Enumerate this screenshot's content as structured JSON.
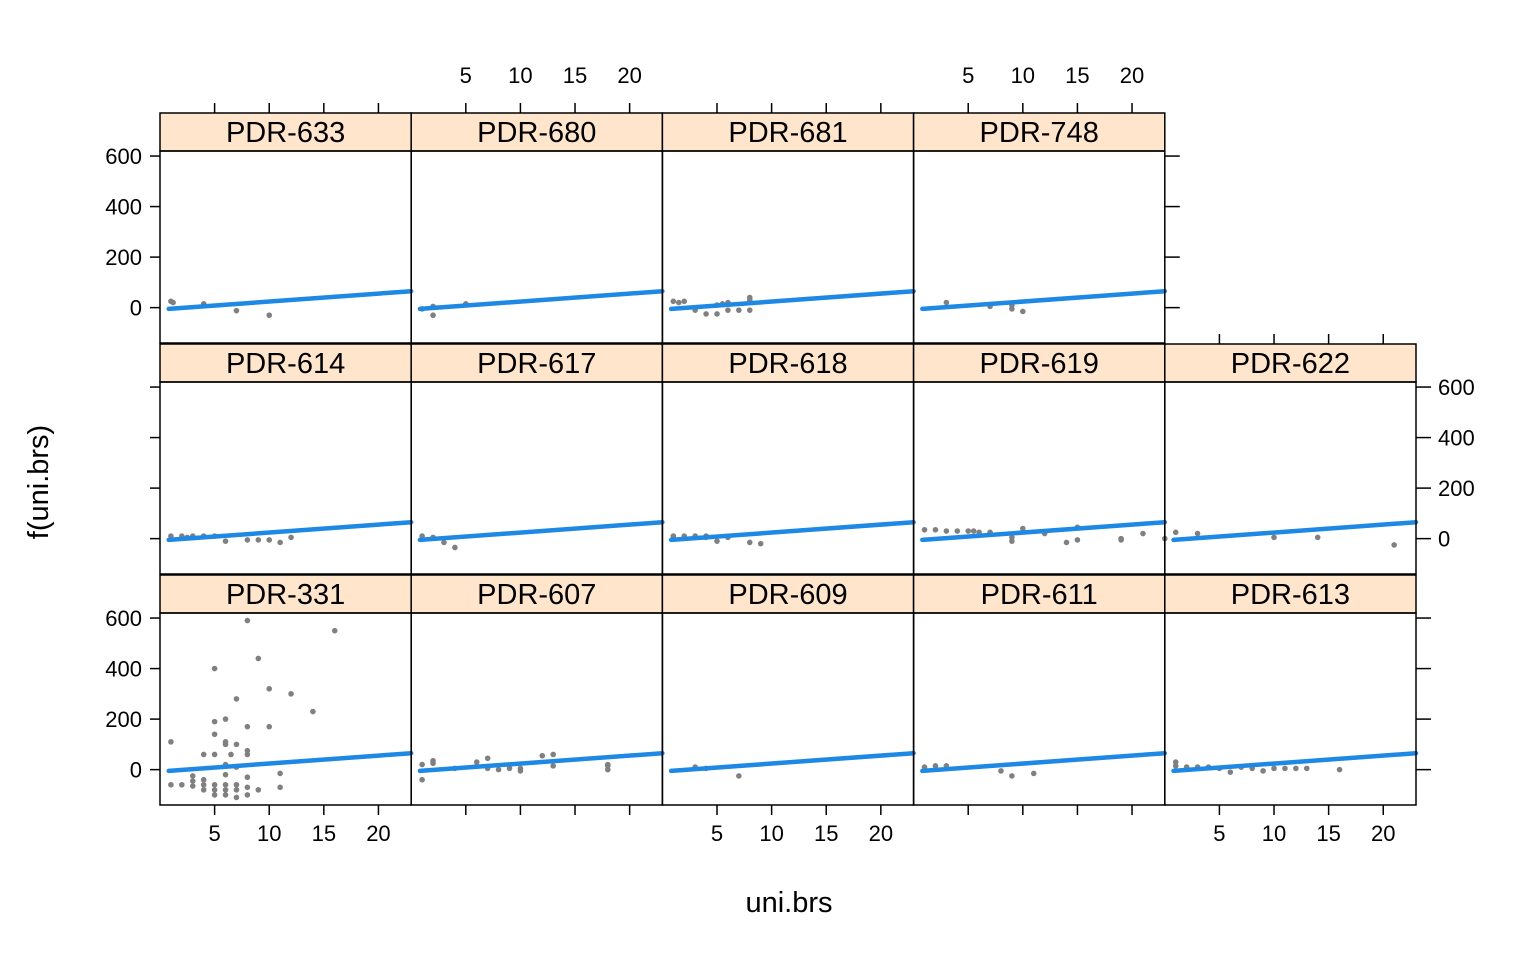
{
  "chart_data": {
    "type": "scatter",
    "xlabel": "uni.brs",
    "ylabel": "f(uni.brs)",
    "xlim": [
      0,
      23
    ],
    "ylim": [
      -140,
      620
    ],
    "x_ticks": [
      5,
      10,
      15,
      20
    ],
    "y_ticks": [
      0,
      200,
      400,
      600
    ],
    "layout": {
      "columns": 5,
      "rows": 3
    },
    "colors": {
      "points": "#808080",
      "fit_line": "#1E88E5",
      "strip_bg": "#FFE5CC",
      "frame": "#000000"
    },
    "fit_line": {
      "x": [
        0.8,
        23
      ],
      "y": [
        -5,
        65
      ]
    },
    "panels": [
      {
        "label": "PDR-633",
        "row": 0,
        "col": 0,
        "points": [
          [
            1,
            25
          ],
          [
            1.2,
            20
          ],
          [
            4,
            15
          ],
          [
            7,
            -12
          ],
          [
            10,
            -30
          ]
        ]
      },
      {
        "label": "PDR-680",
        "row": 0,
        "col": 1,
        "points": [
          [
            1,
            -5
          ],
          [
            2,
            -30
          ],
          [
            2,
            5
          ],
          [
            5,
            15
          ]
        ]
      },
      {
        "label": "PDR-681",
        "row": 0,
        "col": 2,
        "points": [
          [
            1,
            25
          ],
          [
            1.5,
            20
          ],
          [
            2,
            25
          ],
          [
            3,
            -10
          ],
          [
            4,
            -25
          ],
          [
            5,
            -25
          ],
          [
            5,
            10
          ],
          [
            5.5,
            15
          ],
          [
            6,
            -10
          ],
          [
            6,
            20
          ],
          [
            7,
            -10
          ],
          [
            8,
            -10
          ],
          [
            8,
            40
          ],
          [
            8,
            30
          ]
        ]
      },
      {
        "label": "PDR-748",
        "row": 0,
        "col": 3,
        "points": [
          [
            3,
            20
          ],
          [
            7,
            5
          ],
          [
            9,
            10
          ],
          [
            9,
            -5
          ],
          [
            10,
            -15
          ]
        ]
      },
      {
        "label": "PDR-614",
        "row": 1,
        "col": 0,
        "points": [
          [
            1,
            10
          ],
          [
            2,
            10
          ],
          [
            2.5,
            5
          ],
          [
            3,
            10
          ],
          [
            4,
            10
          ],
          [
            5,
            10
          ],
          [
            6,
            -10
          ],
          [
            8,
            -5
          ],
          [
            9,
            -5
          ],
          [
            10,
            -5
          ],
          [
            11,
            -15
          ],
          [
            12,
            5
          ]
        ]
      },
      {
        "label": "PDR-617",
        "row": 1,
        "col": 1,
        "points": [
          [
            1,
            10
          ],
          [
            2,
            5
          ],
          [
            3,
            -15
          ],
          [
            4,
            -35
          ]
        ]
      },
      {
        "label": "PDR-618",
        "row": 1,
        "col": 2,
        "points": [
          [
            1,
            10
          ],
          [
            2,
            10
          ],
          [
            3,
            10
          ],
          [
            4,
            5
          ],
          [
            4,
            10
          ],
          [
            5,
            -10
          ],
          [
            6,
            5
          ],
          [
            8,
            -15
          ],
          [
            9,
            -20
          ]
        ]
      },
      {
        "label": "PDR-619",
        "row": 1,
        "col": 3,
        "points": [
          [
            1,
            35
          ],
          [
            2,
            35
          ],
          [
            3,
            30
          ],
          [
            4,
            30
          ],
          [
            5,
            30
          ],
          [
            5.5,
            30
          ],
          [
            6,
            25
          ],
          [
            7,
            25
          ],
          [
            9,
            -10
          ],
          [
            9,
            5
          ],
          [
            10,
            40
          ],
          [
            12,
            20
          ],
          [
            14,
            -15
          ],
          [
            15,
            -5
          ],
          [
            15,
            45
          ],
          [
            19,
            -5
          ],
          [
            19,
            0
          ],
          [
            21,
            20
          ],
          [
            23,
            0
          ]
        ]
      },
      {
        "label": "PDR-622",
        "row": 1,
        "col": 4,
        "points": [
          [
            1,
            25
          ],
          [
            3,
            20
          ],
          [
            10,
            5
          ],
          [
            14,
            5
          ],
          [
            21,
            -25
          ]
        ]
      },
      {
        "label": "PDR-331",
        "row": 2,
        "col": 0,
        "points": [
          [
            1,
            110
          ],
          [
            1,
            -60
          ],
          [
            2,
            -60
          ],
          [
            3,
            -45
          ],
          [
            3,
            -65
          ],
          [
            3,
            -25
          ],
          [
            4,
            -40
          ],
          [
            4,
            -60
          ],
          [
            4,
            -80
          ],
          [
            4,
            60
          ],
          [
            5,
            -80
          ],
          [
            5,
            -100
          ],
          [
            5,
            -60
          ],
          [
            5,
            60
          ],
          [
            5,
            140
          ],
          [
            5,
            190
          ],
          [
            5,
            400
          ],
          [
            6,
            -80
          ],
          [
            6,
            -100
          ],
          [
            6,
            -60
          ],
          [
            6,
            -20
          ],
          [
            6,
            20
          ],
          [
            6,
            100
          ],
          [
            6,
            110
          ],
          [
            6,
            200
          ],
          [
            6.5,
            60
          ],
          [
            7,
            -60
          ],
          [
            7,
            -80
          ],
          [
            7,
            -110
          ],
          [
            7,
            10
          ],
          [
            7,
            100
          ],
          [
            7,
            280
          ],
          [
            8,
            -100
          ],
          [
            8,
            -70
          ],
          [
            8,
            -30
          ],
          [
            8,
            60
          ],
          [
            8,
            75
          ],
          [
            8,
            170
          ],
          [
            8,
            590
          ],
          [
            9,
            -80
          ],
          [
            9,
            440
          ],
          [
            10,
            170
          ],
          [
            10,
            320
          ],
          [
            11,
            -70
          ],
          [
            11,
            -15
          ],
          [
            12,
            300
          ],
          [
            14,
            230
          ],
          [
            16,
            550
          ]
        ]
      },
      {
        "label": "PDR-607",
        "row": 2,
        "col": 1,
        "points": [
          [
            1,
            20
          ],
          [
            1,
            -40
          ],
          [
            2,
            25
          ],
          [
            2,
            35
          ],
          [
            4,
            5
          ],
          [
            6,
            15
          ],
          [
            6,
            30
          ],
          [
            7,
            5
          ],
          [
            7,
            45
          ],
          [
            8,
            0
          ],
          [
            9,
            5
          ],
          [
            10,
            -5
          ],
          [
            10,
            5
          ],
          [
            12,
            55
          ],
          [
            13,
            15
          ],
          [
            13,
            60
          ],
          [
            18,
            15
          ],
          [
            18,
            0
          ],
          [
            18,
            20
          ]
        ]
      },
      {
        "label": "PDR-609",
        "row": 2,
        "col": 2,
        "points": [
          [
            3,
            10
          ],
          [
            4,
            5
          ],
          [
            7,
            -25
          ]
        ]
      },
      {
        "label": "PDR-611",
        "row": 2,
        "col": 3,
        "points": [
          [
            1,
            10
          ],
          [
            2,
            15
          ],
          [
            3,
            15
          ],
          [
            8,
            -5
          ],
          [
            9,
            -25
          ],
          [
            11,
            -15
          ]
        ]
      },
      {
        "label": "PDR-613",
        "row": 2,
        "col": 4,
        "points": [
          [
            1,
            30
          ],
          [
            1,
            15
          ],
          [
            2,
            10
          ],
          [
            3,
            10
          ],
          [
            4,
            10
          ],
          [
            5,
            5
          ],
          [
            6,
            -10
          ],
          [
            7,
            10
          ],
          [
            8,
            5
          ],
          [
            9,
            -5
          ],
          [
            10,
            5
          ],
          [
            11,
            5
          ],
          [
            12,
            5
          ],
          [
            13,
            5
          ],
          [
            16,
            0
          ]
        ]
      }
    ],
    "tick_placement": {
      "x_bottom_labels_cols": [
        0,
        2,
        4
      ],
      "x_top_labels_cols": [
        1,
        3
      ],
      "y_left_labels_rows": [
        0,
        2
      ],
      "y_right_labels_rows": [
        1
      ]
    }
  }
}
